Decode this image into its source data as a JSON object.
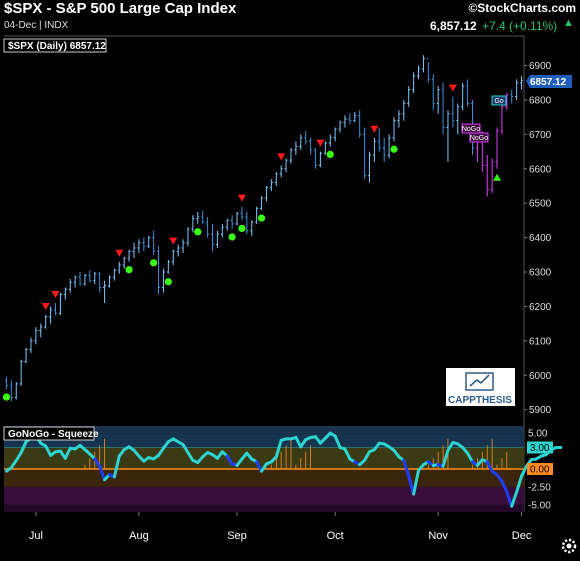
{
  "header": {
    "title": "$SPX - S&P 500 Large Cap Index",
    "subtitle": "04-Dec | INDX",
    "logo_text": "©StockCharts.com",
    "last_price": "6,857.12",
    "change": "+7.4 (+0.11%)"
  },
  "main_panel": {
    "legend": "$SPX (Daily) 6857.12",
    "price_tag": "6857.12"
  },
  "sub_panel": {
    "legend": "GoNoGo - Squeeze"
  },
  "watermark": {
    "text": "CAPPTHESIS"
  },
  "badges": [
    "NoGo",
    "NoGo",
    "Go"
  ],
  "chart_data": [
    {
      "type": "ohlc",
      "name": "$SPX (Daily)",
      "yaxis_ticks": [
        5900,
        6000,
        6100,
        6200,
        6300,
        6400,
        6500,
        6600,
        6700,
        6800,
        6900
      ],
      "ylim": [
        5870,
        6980
      ],
      "xaxis_labels": [
        "Jul",
        "Aug",
        "Sep",
        "Oct",
        "Nov",
        "Dec"
      ],
      "colors": {
        "up": "#7ec8ff",
        "down": "#3a8fd6",
        "nogo": "#e040fb",
        "go_trend": "#62d1ff"
      },
      "bars": [
        [
          5985,
          5995,
          5960,
          5970
        ],
        [
          5970,
          5985,
          5925,
          5935
        ],
        [
          5935,
          5980,
          5930,
          5975
        ],
        [
          5975,
          6045,
          5970,
          6040
        ],
        [
          6040,
          6080,
          6035,
          6075
        ],
        [
          6075,
          6110,
          6065,
          6100
        ],
        [
          6100,
          6140,
          6090,
          6130
        ],
        [
          6130,
          6150,
          6110,
          6140
        ],
        [
          6140,
          6175,
          6135,
          6170
        ],
        [
          6170,
          6200,
          6150,
          6190
        ],
        [
          6190,
          6210,
          6175,
          6180
        ],
        [
          6180,
          6240,
          6175,
          6235
        ],
        [
          6235,
          6255,
          6220,
          6250
        ],
        [
          6250,
          6280,
          6240,
          6270
        ],
        [
          6270,
          6290,
          6255,
          6285
        ],
        [
          6285,
          6300,
          6260,
          6265
        ],
        [
          6265,
          6295,
          6260,
          6290
        ],
        [
          6290,
          6305,
          6270,
          6275
        ],
        [
          6275,
          6300,
          6265,
          6295
        ],
        [
          6295,
          6300,
          6240,
          6255
        ],
        [
          6255,
          6275,
          6210,
          6260
        ],
        [
          6260,
          6290,
          6255,
          6285
        ],
        [
          6285,
          6310,
          6275,
          6305
        ],
        [
          6305,
          6330,
          6295,
          6320
        ],
        [
          6320,
          6345,
          6310,
          6340
        ],
        [
          6340,
          6365,
          6330,
          6360
        ],
        [
          6360,
          6385,
          6340,
          6370
        ],
        [
          6370,
          6395,
          6355,
          6385
        ],
        [
          6385,
          6400,
          6360,
          6375
        ],
        [
          6375,
          6405,
          6370,
          6400
        ],
        [
          6400,
          6420,
          6350,
          6360
        ],
        [
          6360,
          6375,
          6235,
          6255
        ],
        [
          6255,
          6310,
          6240,
          6300
        ],
        [
          6300,
          6335,
          6295,
          6330
        ],
        [
          6330,
          6365,
          6320,
          6360
        ],
        [
          6360,
          6380,
          6345,
          6370
        ],
        [
          6370,
          6395,
          6355,
          6385
        ],
        [
          6385,
          6430,
          6375,
          6425
        ],
        [
          6425,
          6465,
          6415,
          6455
        ],
        [
          6455,
          6475,
          6440,
          6460
        ],
        [
          6460,
          6478,
          6440,
          6445
        ],
        [
          6445,
          6460,
          6400,
          6410
        ],
        [
          6410,
          6440,
          6360,
          6380
        ],
        [
          6380,
          6420,
          6370,
          6410
        ],
        [
          6410,
          6440,
          6400,
          6430
        ],
        [
          6430,
          6455,
          6420,
          6450
        ],
        [
          6450,
          6465,
          6425,
          6440
        ],
        [
          6440,
          6475,
          6435,
          6470
        ],
        [
          6470,
          6490,
          6450,
          6460
        ],
        [
          6460,
          6475,
          6410,
          6420
        ],
        [
          6420,
          6450,
          6405,
          6445
        ],
        [
          6445,
          6490,
          6440,
          6485
        ],
        [
          6485,
          6520,
          6480,
          6515
        ],
        [
          6515,
          6550,
          6505,
          6545
        ],
        [
          6545,
          6570,
          6535,
          6560
        ],
        [
          6560,
          6590,
          6550,
          6585
        ],
        [
          6585,
          6610,
          6575,
          6600
        ],
        [
          6600,
          6630,
          6590,
          6625
        ],
        [
          6625,
          6660,
          6615,
          6655
        ],
        [
          6655,
          6680,
          6640,
          6665
        ],
        [
          6665,
          6700,
          6655,
          6690
        ],
        [
          6690,
          6710,
          6670,
          6680
        ],
        [
          6680,
          6690,
          6640,
          6655
        ],
        [
          6655,
          6660,
          6600,
          6610
        ],
        [
          6610,
          6650,
          6605,
          6645
        ],
        [
          6645,
          6680,
          6640,
          6675
        ],
        [
          6675,
          6700,
          6665,
          6690
        ],
        [
          6690,
          6720,
          6680,
          6715
        ],
        [
          6715,
          6740,
          6705,
          6735
        ],
        [
          6735,
          6755,
          6720,
          6745
        ],
        [
          6745,
          6760,
          6730,
          6740
        ],
        [
          6740,
          6765,
          6735,
          6755
        ],
        [
          6755,
          6770,
          6690,
          6700
        ],
        [
          6700,
          6720,
          6570,
          6580
        ],
        [
          6580,
          6650,
          6560,
          6640
        ],
        [
          6640,
          6690,
          6620,
          6680
        ],
        [
          6680,
          6720,
          6650,
          6660
        ],
        [
          6660,
          6690,
          6620,
          6640
        ],
        [
          6640,
          6700,
          6630,
          6690
        ],
        [
          6690,
          6750,
          6680,
          6740
        ],
        [
          6740,
          6770,
          6720,
          6760
        ],
        [
          6760,
          6800,
          6740,
          6790
        ],
        [
          6790,
          6840,
          6780,
          6830
        ],
        [
          6830,
          6880,
          6820,
          6870
        ],
        [
          6870,
          6900,
          6860,
          6890
        ],
        [
          6890,
          6930,
          6880,
          6920
        ],
        [
          6920,
          6910,
          6850,
          6860
        ],
        [
          6860,
          6875,
          6770,
          6790
        ],
        [
          6790,
          6840,
          6760,
          6830
        ],
        [
          6830,
          6850,
          6700,
          6720
        ],
        [
          6720,
          6770,
          6620,
          6760
        ],
        [
          6760,
          6810,
          6720,
          6740
        ],
        [
          6740,
          6790,
          6700,
          6780
        ],
        [
          6780,
          6850,
          6770,
          6840
        ],
        [
          6840,
          6860,
          6780,
          6790
        ],
        [
          6790,
          6800,
          6640,
          6660
        ],
        [
          6660,
          6700,
          6620,
          6690
        ],
        [
          6690,
          6710,
          6590,
          6610
        ],
        [
          6610,
          6640,
          6520,
          6540
        ],
        [
          6540,
          6630,
          6530,
          6620
        ],
        [
          6620,
          6720,
          6600,
          6710
        ],
        [
          6710,
          6790,
          6700,
          6780
        ],
        [
          6780,
          6820,
          6770,
          6815
        ],
        [
          6815,
          6830,
          6790,
          6810
        ],
        [
          6810,
          6860,
          6800,
          6850
        ],
        [
          6850,
          6870,
          6830,
          6857
        ]
      ],
      "signals_up": [
        0,
        25,
        30,
        33,
        39,
        46,
        48,
        52,
        66,
        79,
        100
      ],
      "signals_down": [
        8,
        10,
        23,
        34,
        48,
        56,
        64,
        75,
        91
      ]
    },
    {
      "type": "line",
      "name": "GoNoGo - Squeeze",
      "yaxis_ticks": [
        -5.0,
        -2.5,
        0.0,
        3.0,
        5.0
      ],
      "ylim": [
        -6,
        6
      ],
      "colors": {
        "up_zone": "#1a2b5c",
        "down_zone": "#3d0e3d",
        "line_up": "#2dd4d0",
        "line_down": "#1f3fff"
      },
      "values": [
        -0.3,
        0.2,
        1.2,
        2.3,
        3.8,
        4.3,
        4.6,
        3.6,
        3.2,
        1.9,
        2.4,
        2.5,
        1.5,
        2.9,
        2.8,
        3.3,
        2.7,
        2.1,
        1.4,
        0.4,
        -1.5,
        -0.8,
        -1.1,
        1.8,
        2.7,
        3.1,
        2.6,
        1.8,
        1.1,
        1.6,
        1.4,
        1.9,
        2.9,
        3.8,
        4.2,
        3.8,
        3.4,
        2.3,
        1.2,
        0.9,
        1.7,
        2.3,
        2.0,
        1.5,
        2.4,
        1.8,
        0.7,
        0.5,
        1.4,
        2.2,
        1.4,
        1.0,
        -0.3,
        0.7,
        1.0,
        1.7,
        4.0,
        4.2,
        4.2,
        4.4,
        3.1,
        4.1,
        4.4,
        4.5,
        3.6,
        4.3,
        5.0,
        4.6,
        3.0,
        2.8,
        1.4,
        1.0,
        0.6,
        1.2,
        2.4,
        2.7,
        3.6,
        3.5,
        3.1,
        2.6,
        1.7,
        1.2,
        -1.0,
        -3.5,
        -0.2,
        0.6,
        1.0,
        0.5,
        0.6,
        0.4,
        2.6,
        3.7,
        3.5,
        3.0,
        2.2,
        1.0,
        0.5,
        1.3,
        1.0,
        -0.3,
        -0.8,
        -1.7,
        -3.2,
        -5.2,
        -3.2,
        -1.0,
        0.4,
        1.3,
        1.4,
        1.8,
        2.0,
        2.6,
        3.0,
        3.0
      ]
    }
  ]
}
